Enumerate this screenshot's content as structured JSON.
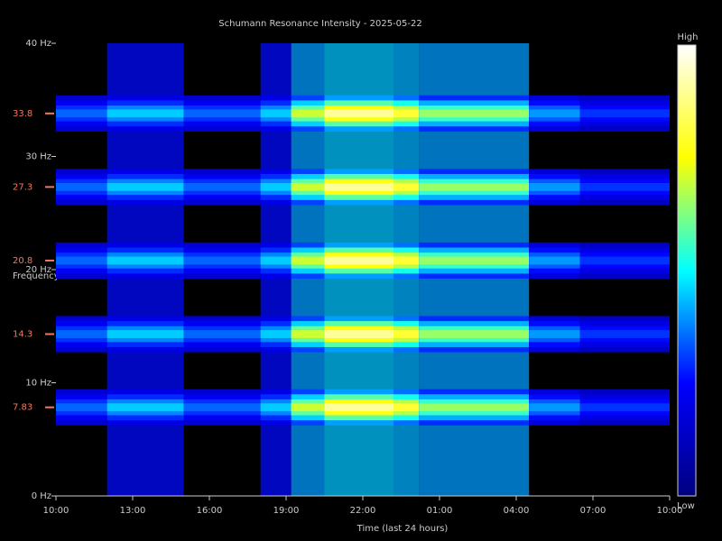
{
  "chart_data": {
    "type": "spectrogram",
    "title": "Schumann Resonance Intensity - 2025-05-22",
    "x_label": "Time (last 24 hours)",
    "y_label": "Frequency",
    "xlim": [
      0,
      24
    ],
    "xticks": [
      {
        "value": 0,
        "label": "10:00"
      },
      {
        "value": 3,
        "label": "13:00"
      },
      {
        "value": 6,
        "label": "16:00"
      },
      {
        "value": 9,
        "label": "19:00"
      },
      {
        "value": 12,
        "label": "22:00"
      },
      {
        "value": 15,
        "label": "01:00"
      },
      {
        "value": 18,
        "label": "04:00"
      },
      {
        "value": 21,
        "label": "07:00"
      },
      {
        "value": 24,
        "label": "10:00"
      }
    ],
    "ylim": [
      0,
      40
    ],
    "yticks": [
      {
        "value": 0,
        "label": "0 Hz"
      },
      {
        "value": 10,
        "label": "10 Hz"
      },
      {
        "value": 20,
        "label": "20 Hz"
      },
      {
        "value": 30,
        "label": "30 Hz"
      },
      {
        "value": 40,
        "label": "40 Hz"
      }
    ],
    "resonances": [
      7.83,
      14.3,
      20.8,
      27.3,
      33.8
    ],
    "resonance_color": "#f07a5a",
    "time_bins": [
      0,
      2,
      5,
      8,
      9.2,
      10.5,
      13.2,
      14.2,
      18.5,
      20.5,
      24
    ],
    "intensity": [
      0.35,
      0.45,
      0.35,
      0.45,
      0.7,
      0.9,
      0.8,
      0.65,
      0.4,
      0.3
    ],
    "background": [
      0,
      0.06,
      0,
      0.06,
      0.2,
      0.24,
      0.22,
      0.2,
      0,
      0
    ],
    "colorscale": [
      "#00007f",
      "#0000ff",
      "#00ffff",
      "#ffff00",
      "#ffffff"
    ],
    "colorbar_labels": {
      "high": "High",
      "low": "Low"
    }
  }
}
